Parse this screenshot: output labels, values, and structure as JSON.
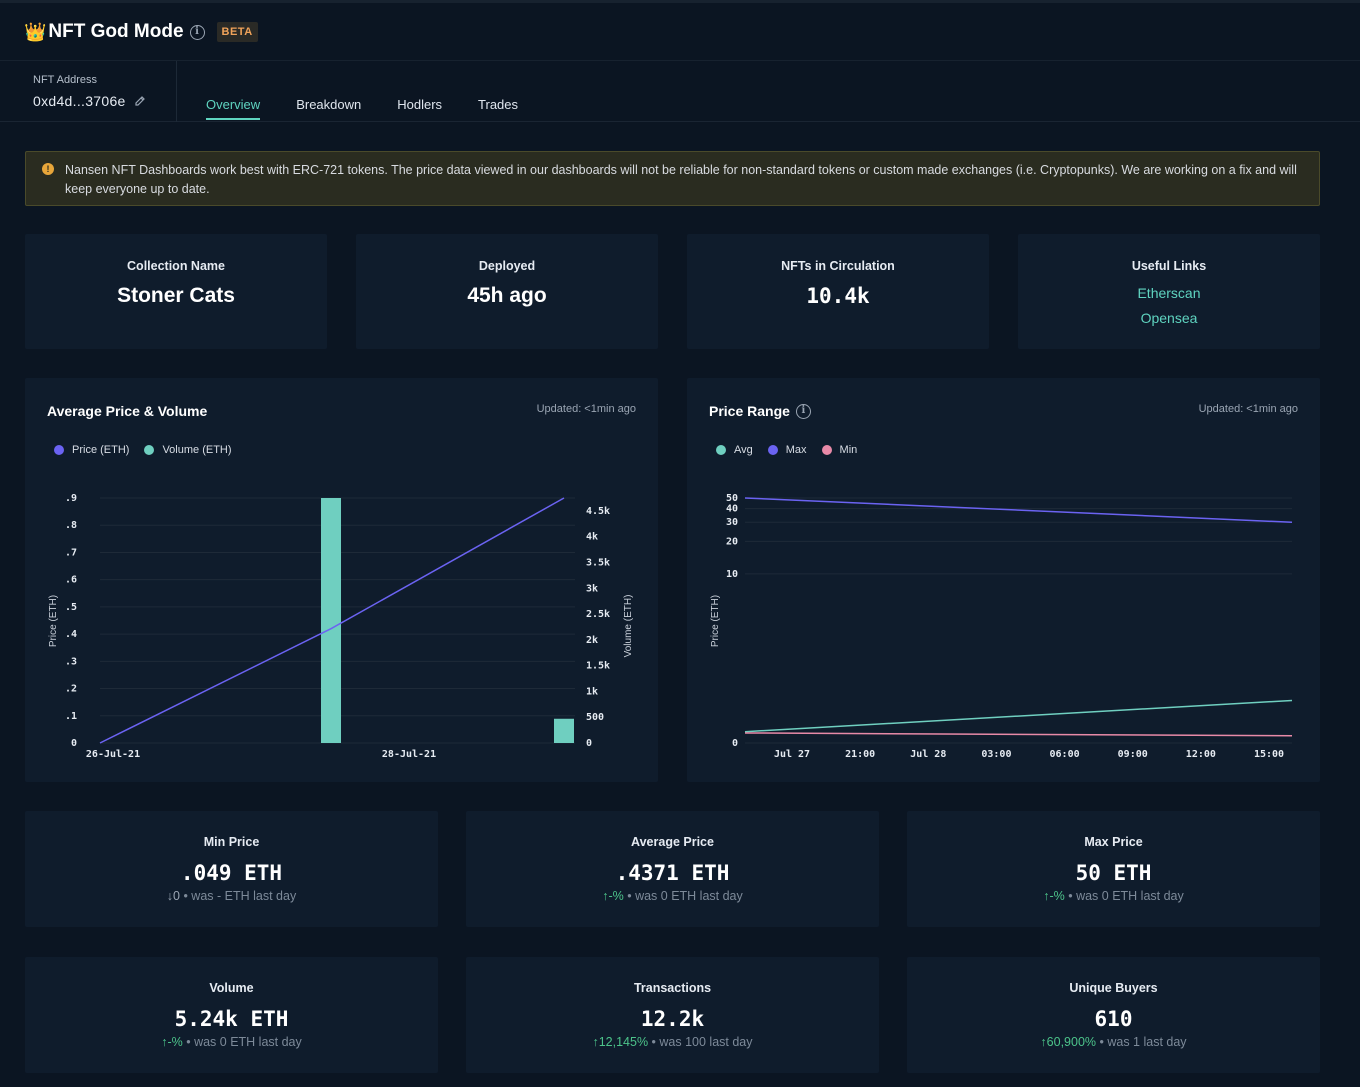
{
  "header": {
    "crown_icon": "crown-icon",
    "title": "NFT God Mode",
    "badge": "BETA"
  },
  "address": {
    "label": "NFT Address",
    "value": "0xd4d...3706e"
  },
  "tabs": [
    {
      "label": "Overview",
      "active": true
    },
    {
      "label": "Breakdown",
      "active": false
    },
    {
      "label": "Hodlers",
      "active": false
    },
    {
      "label": "Trades",
      "active": false
    }
  ],
  "alert": {
    "text": "Nansen NFT Dashboards work best with ERC-721 tokens. The price data viewed in our dashboards will not be reliable for non-standard tokens or custom made exchanges (i.e. Cryptopunks). We are working on a fix and will keep everyone up to date."
  },
  "summary": {
    "collection": {
      "label": "Collection Name",
      "value": "Stoner Cats"
    },
    "deployed": {
      "label": "Deployed",
      "value": "45h ago"
    },
    "circulation": {
      "label": "NFTs in Circulation",
      "value": "10.4k"
    },
    "links": {
      "label": "Useful Links",
      "items": [
        "Etherscan",
        "Opensea"
      ]
    }
  },
  "avg_chart": {
    "title": "Average Price & Volume",
    "updated": "Updated: <1min ago",
    "legend": [
      "Price (ETH)",
      "Volume (ETH)"
    ]
  },
  "range_chart": {
    "title": "Price Range",
    "updated": "Updated: <1min ago",
    "legend": [
      "Avg",
      "Max",
      "Min"
    ]
  },
  "chart_data": [
    {
      "type": "bar+line",
      "title": "Average Price & Volume",
      "ylabel": "Price (ETH)",
      "y2label": "Volume (ETH)",
      "y_ticks": [
        "0",
        ".1",
        ".2",
        ".3",
        ".4",
        ".5",
        ".6",
        ".7",
        ".8",
        ".9"
      ],
      "y2_ticks": [
        "0",
        "500",
        "1k",
        "1.5k",
        "2k",
        "2.5k",
        "3k",
        "3.5k",
        "4k",
        "4.5k"
      ],
      "x_ticks": [
        "26-Jul-21",
        "28-Jul-21"
      ],
      "ylim": [
        0,
        0.9
      ],
      "y2lim": [
        0,
        4750
      ],
      "series": [
        {
          "name": "Price (ETH)",
          "type": "line",
          "color": "#6b63f2",
          "x": [
            "26-Jul-21",
            "27-Jul-21",
            "28-Jul-21"
          ],
          "values": [
            0,
            0.42,
            0.9
          ]
        },
        {
          "name": "Volume (ETH)",
          "type": "bar",
          "color": "#6fcfc0",
          "x": [
            "27-Jul-21",
            "28-Jul-21"
          ],
          "values": [
            4770,
            470
          ]
        }
      ],
      "grid": true,
      "legend": "top-left"
    },
    {
      "type": "line",
      "title": "Price Range",
      "ylabel": "Price (ETH)",
      "scale": "log",
      "y_ticks": [
        "0",
        "10",
        "20",
        "30",
        "40",
        "50"
      ],
      "x_ticks": [
        "Jul 27",
        "21:00",
        "Jul 28",
        "03:00",
        "06:00",
        "09:00",
        "12:00",
        "15:00"
      ],
      "series": [
        {
          "name": "Avg",
          "color": "#6fcfc0",
          "values": [
            0.08,
            0.43
          ]
        },
        {
          "name": "Max",
          "color": "#6b63f2",
          "values": [
            50,
            30
          ]
        },
        {
          "name": "Min",
          "color": "#e88aa8",
          "values": [
            0.07,
            0.049
          ]
        }
      ],
      "grid": true,
      "legend": "top-left"
    }
  ],
  "metrics": [
    {
      "label": "Min Price",
      "value": ".049 ETH",
      "arrow": "down",
      "change": "0",
      "suffix": " • was - ETH last day"
    },
    {
      "label": "Average Price",
      "value": ".4371 ETH",
      "arrow": "up",
      "change": "-%",
      "suffix": " • was 0 ETH last day"
    },
    {
      "label": "Max Price",
      "value": "50 ETH",
      "arrow": "up",
      "change": "-%",
      "suffix": " • was 0 ETH last day"
    },
    {
      "label": "Volume",
      "value": "5.24k ETH",
      "arrow": "up",
      "change": "-%",
      "suffix": " • was 0 ETH last day"
    },
    {
      "label": "Transactions",
      "value": "12.2k",
      "arrow": "up",
      "change": "12,145%",
      "suffix": " • was 100 last day"
    },
    {
      "label": "Unique Buyers",
      "value": "610",
      "arrow": "up",
      "change": "60,900%",
      "suffix": " • was 1 last day"
    }
  ],
  "colors": {
    "accent": "#5fd4c0",
    "price": "#6b63f2",
    "volume": "#6fcfc0",
    "min": "#e88aa8",
    "up": "#4cc38a"
  }
}
